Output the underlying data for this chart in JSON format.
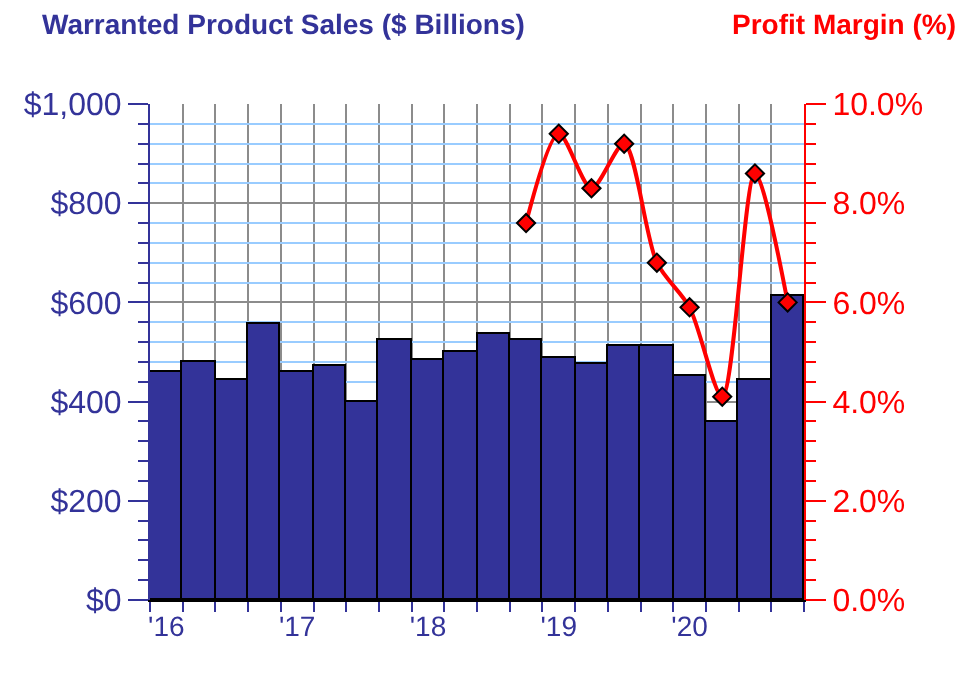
{
  "chart_data": {
    "type": "bar",
    "ylabel": "Warranted Product Sales ($ Billions)",
    "y2label": "Profit Margin (%)",
    "categories": [
      "'16",
      null,
      null,
      null,
      "'17",
      null,
      null,
      null,
      "'18",
      null,
      null,
      null,
      "'19",
      null,
      null,
      null,
      "'20",
      null,
      null,
      null
    ],
    "series": [
      {
        "color": "#333399",
        "values": [
          459,
          479,
          445,
          555,
          459,
          473,
          400,
          523,
          482,
          500,
          536,
          523,
          486,
          477,
          512,
          512,
          453,
          359,
          445,
          614
        ]
      },
      {
        "type": "line",
        "axis": "y2",
        "color": "#ff0000",
        "marker": "diamond",
        "values": [
          null,
          null,
          null,
          null,
          null,
          null,
          null,
          null,
          null,
          null,
          null,
          7.6,
          9.4,
          8.3,
          9.2,
          6.8,
          5.9,
          4.1,
          8.6,
          6.0
        ]
      }
    ],
    "ylim": [
      0,
      1000
    ],
    "yticks": [
      {
        "value": 0,
        "label": "$0"
      },
      {
        "value": 40,
        "label": null
      },
      {
        "value": 80,
        "label": null
      },
      {
        "value": 120,
        "label": null
      },
      {
        "value": 160,
        "label": null
      },
      {
        "value": 200,
        "label": "$200"
      },
      {
        "value": 240,
        "label": null
      },
      {
        "value": 280,
        "label": null
      },
      {
        "value": 320,
        "label": null
      },
      {
        "value": 360,
        "label": null
      },
      {
        "value": 400,
        "label": "$400"
      },
      {
        "value": 440,
        "label": null
      },
      {
        "value": 480,
        "label": null
      },
      {
        "value": 520,
        "label": null
      },
      {
        "value": 560,
        "label": null
      },
      {
        "value": 600,
        "label": "$600"
      },
      {
        "value": 640,
        "label": null
      },
      {
        "value": 680,
        "label": null
      },
      {
        "value": 720,
        "label": null
      },
      {
        "value": 760,
        "label": null
      },
      {
        "value": 800,
        "label": "$800"
      },
      {
        "value": 840,
        "label": null
      },
      {
        "value": 880,
        "label": null
      },
      {
        "value": 920,
        "label": null
      },
      {
        "value": 960,
        "label": null
      },
      {
        "value": 1000,
        "label": "$1,000"
      }
    ],
    "y2lim": [
      0,
      10
    ],
    "y2ticks": [
      {
        "value": 0,
        "label": "0.0%"
      },
      {
        "value": 0.4,
        "label": null
      },
      {
        "value": 0.8,
        "label": null
      },
      {
        "value": 1.2,
        "label": null
      },
      {
        "value": 1.6,
        "label": null
      },
      {
        "value": 2,
        "label": "2.0%"
      },
      {
        "value": 2.4,
        "label": null
      },
      {
        "value": 2.8,
        "label": null
      },
      {
        "value": 3.2,
        "label": null
      },
      {
        "value": 3.6,
        "label": null
      },
      {
        "value": 4,
        "label": "4.0%"
      },
      {
        "value": 4.4,
        "label": null
      },
      {
        "value": 4.8,
        "label": null
      },
      {
        "value": 5.2,
        "label": null
      },
      {
        "value": 5.6,
        "label": null
      },
      {
        "value": 6,
        "label": "6.0%"
      },
      {
        "value": 6.4,
        "label": null
      },
      {
        "value": 6.8,
        "label": null
      },
      {
        "value": 7.2,
        "label": null
      },
      {
        "value": 7.6,
        "label": null
      },
      {
        "value": 8,
        "label": "8.0%"
      },
      {
        "value": 8.4,
        "label": null
      },
      {
        "value": 8.8,
        "label": null
      },
      {
        "value": 9.2,
        "label": null
      },
      {
        "value": 9.6,
        "label": null
      },
      {
        "value": 10,
        "label": "10.0%"
      }
    ],
    "grid": true
  }
}
